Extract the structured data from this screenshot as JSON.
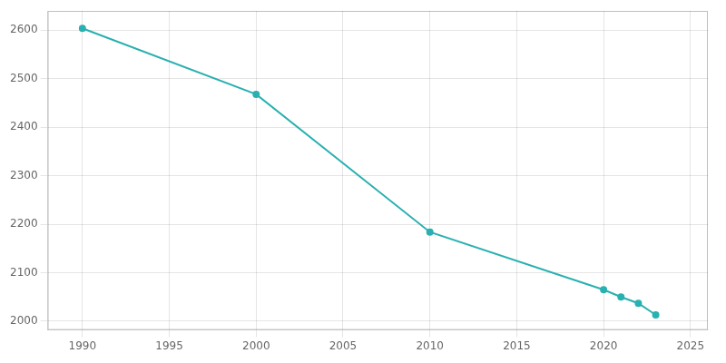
{
  "chart_data": {
    "type": "line",
    "x": [
      1990,
      2000,
      2010,
      2020,
      2021,
      2022,
      2023
    ],
    "values": [
      2604,
      2468,
      2184,
      2065,
      2050,
      2037,
      2013
    ],
    "color": "#2ab0b0",
    "marker": "circle",
    "xlim": [
      1988,
      2026
    ],
    "xticks": [
      1990,
      1995,
      2000,
      2005,
      2010,
      2015,
      2020,
      2025
    ],
    "ylim": [
      1982,
      2640
    ],
    "yticks": [
      2000,
      2100,
      2200,
      2300,
      2400,
      2500,
      2600
    ],
    "grid": true
  }
}
